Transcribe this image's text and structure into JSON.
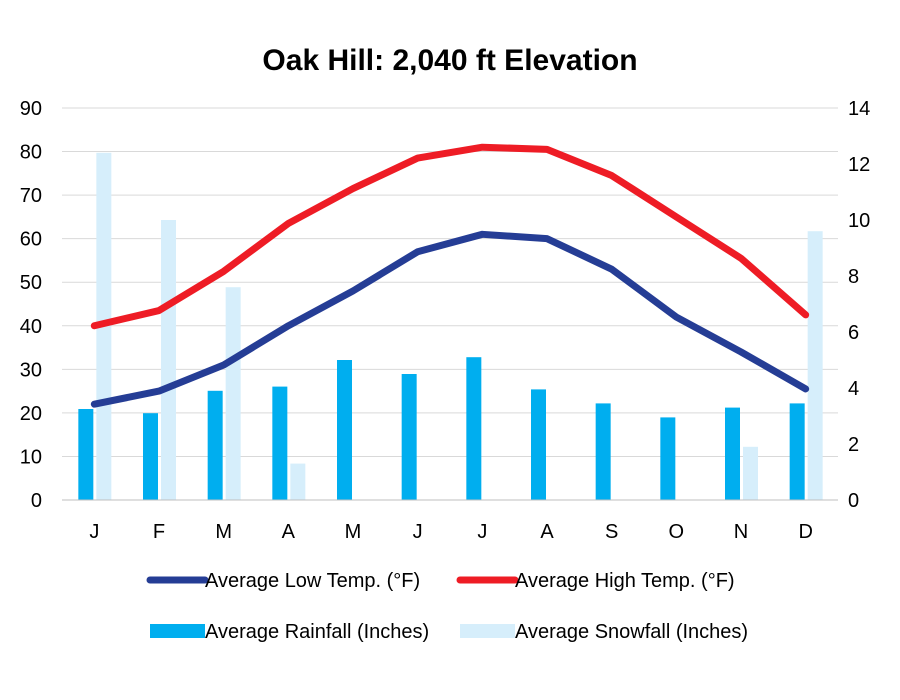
{
  "chart_data": {
    "type": "bar",
    "title": "Oak Hill: 2,040 ft Elevation",
    "categories": [
      "J",
      "F",
      "M",
      "A",
      "M",
      "J",
      "J",
      "A",
      "S",
      "O",
      "N",
      "D"
    ],
    "y_left": {
      "min": 0,
      "max": 90,
      "ticks": [
        0,
        10,
        20,
        30,
        40,
        50,
        60,
        70,
        80,
        90
      ]
    },
    "y_right": {
      "min": 0,
      "max": 14,
      "ticks": [
        0,
        2,
        4,
        6,
        8,
        10,
        12,
        14
      ]
    },
    "grid": true,
    "legend_position": "bottom",
    "series": [
      {
        "name": "Average Low Temp. (°F)",
        "type": "line",
        "axis": "left",
        "color": "#253d95",
        "values": [
          22,
          25,
          31,
          40,
          48,
          57,
          61,
          60,
          53,
          42,
          34,
          25.5
        ]
      },
      {
        "name": "Average High Temp. (°F)",
        "type": "line",
        "axis": "left",
        "color": "#ee1c25",
        "values": [
          40,
          43.5,
          52.5,
          63.5,
          71.5,
          78.5,
          81,
          80.5,
          74.5,
          65,
          55.5,
          42.5
        ]
      },
      {
        "name": "Average Rainfall (Inches)",
        "type": "bar",
        "axis": "right",
        "color": "#00aeef",
        "values": [
          3.25,
          3.1,
          3.9,
          4.05,
          5.0,
          4.5,
          5.1,
          3.95,
          3.45,
          2.95,
          3.3,
          3.45
        ]
      },
      {
        "name": "Average Snowfall (Inches)",
        "type": "bar",
        "axis": "right",
        "color": "#d6eefb",
        "values": [
          12.4,
          10.0,
          7.6,
          1.3,
          0,
          0,
          0,
          0,
          0,
          0,
          1.9,
          9.6
        ]
      }
    ]
  }
}
